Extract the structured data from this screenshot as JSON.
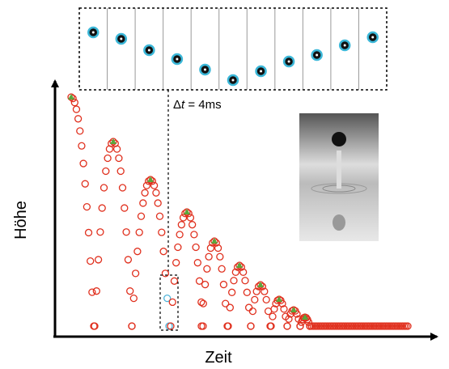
{
  "annotation": {
    "delta": "Δ",
    "variable": "t",
    "rest": " = 4ms"
  },
  "y_axis_label": "Höhe",
  "x_axis_label": "Zeit"
}
